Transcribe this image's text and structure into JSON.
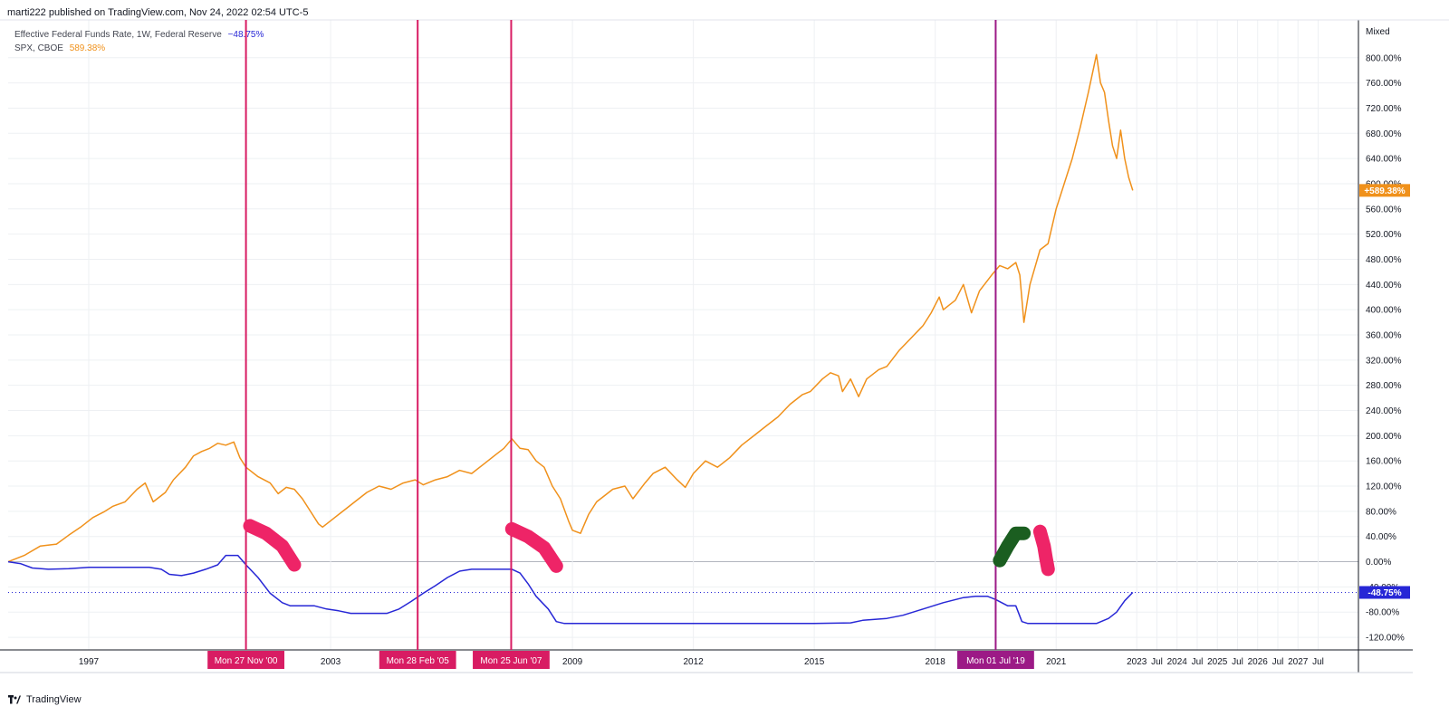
{
  "header": {
    "published_text": "marti222 published on TradingView.com, Nov 24, 2022 02:54 UTC-5"
  },
  "legend": {
    "fed": {
      "name": "Effective Federal Funds Rate, 1W, Federal Reserve",
      "value": "−48.75%",
      "color": "#2727d6"
    },
    "spx": {
      "name": "SPX, CBOE",
      "value": "589.38%",
      "color": "#f0911b"
    }
  },
  "scale_mode": "Mixed",
  "footer": {
    "brand": "TradingView"
  },
  "chart_data": {
    "type": "line",
    "y_unit": "percent change",
    "ylim": [
      -140,
      860
    ],
    "x_range_years": [
      1995.0,
      2028.5
    ],
    "x_tick_labels": [
      {
        "label": "1997",
        "t": 1997.0
      },
      {
        "label": "2003",
        "t": 2003.0
      },
      {
        "label": "2009",
        "t": 2009.0
      },
      {
        "label": "2012",
        "t": 2012.0
      },
      {
        "label": "2015",
        "t": 2015.0
      },
      {
        "label": "2018",
        "t": 2018.0
      },
      {
        "label": "2021",
        "t": 2021.0
      },
      {
        "label": "2023",
        "t": 2023.0
      },
      {
        "label": "Jul",
        "t": 2023.5
      },
      {
        "label": "2024",
        "t": 2024.0
      },
      {
        "label": "Jul",
        "t": 2024.5
      },
      {
        "label": "2025",
        "t": 2025.0
      },
      {
        "label": "Jul",
        "t": 2025.5
      },
      {
        "label": "2026",
        "t": 2026.0
      },
      {
        "label": "Jul",
        "t": 2026.5
      },
      {
        "label": "2027",
        "t": 2027.0
      },
      {
        "label": "Jul",
        "t": 2027.5
      }
    ],
    "y_tick_labels": [
      "800.00%",
      "760.00%",
      "720.00%",
      "680.00%",
      "640.00%",
      "600.00%",
      "560.00%",
      "520.00%",
      "480.00%",
      "440.00%",
      "400.00%",
      "360.00%",
      "320.00%",
      "280.00%",
      "240.00%",
      "200.00%",
      "160.00%",
      "120.00%",
      "80.00%",
      "40.00%",
      "0.00%",
      "-40.00%",
      "-80.00%",
      "-120.00%"
    ],
    "y_tick_values": [
      800,
      760,
      720,
      680,
      640,
      600,
      560,
      520,
      480,
      440,
      400,
      360,
      320,
      280,
      240,
      200,
      160,
      120,
      80,
      40,
      0,
      -40,
      -80,
      -120
    ],
    "series": [
      {
        "name": "SPX, CBOE",
        "color": "#f0911b",
        "last_value_label": "+589.38%",
        "points": [
          [
            1995.0,
            0
          ],
          [
            1995.4,
            10
          ],
          [
            1995.8,
            25
          ],
          [
            1996.2,
            28
          ],
          [
            1996.5,
            42
          ],
          [
            1996.8,
            55
          ],
          [
            1997.1,
            70
          ],
          [
            1997.4,
            80
          ],
          [
            1997.6,
            88
          ],
          [
            1997.9,
            95
          ],
          [
            1998.2,
            115
          ],
          [
            1998.4,
            125
          ],
          [
            1998.6,
            95
          ],
          [
            1998.9,
            110
          ],
          [
            1999.1,
            130
          ],
          [
            1999.4,
            150
          ],
          [
            1999.6,
            168
          ],
          [
            1999.8,
            175
          ],
          [
            2000.0,
            180
          ],
          [
            2000.2,
            188
          ],
          [
            2000.4,
            185
          ],
          [
            2000.6,
            190
          ],
          [
            2000.75,
            165
          ],
          [
            2000.9,
            150
          ],
          [
            2001.2,
            135
          ],
          [
            2001.5,
            125
          ],
          [
            2001.7,
            108
          ],
          [
            2001.9,
            118
          ],
          [
            2002.1,
            115
          ],
          [
            2002.3,
            100
          ],
          [
            2002.5,
            80
          ],
          [
            2002.7,
            60
          ],
          [
            2002.8,
            55
          ],
          [
            2003.0,
            65
          ],
          [
            2003.3,
            80
          ],
          [
            2003.6,
            95
          ],
          [
            2003.9,
            110
          ],
          [
            2004.2,
            120
          ],
          [
            2004.5,
            115
          ],
          [
            2004.8,
            125
          ],
          [
            2005.1,
            130
          ],
          [
            2005.3,
            122
          ],
          [
            2005.6,
            130
          ],
          [
            2005.9,
            135
          ],
          [
            2006.2,
            145
          ],
          [
            2006.5,
            140
          ],
          [
            2006.8,
            155
          ],
          [
            2007.1,
            170
          ],
          [
            2007.3,
            180
          ],
          [
            2007.5,
            195
          ],
          [
            2007.7,
            180
          ],
          [
            2007.9,
            178
          ],
          [
            2008.1,
            160
          ],
          [
            2008.3,
            150
          ],
          [
            2008.5,
            120
          ],
          [
            2008.7,
            100
          ],
          [
            2008.9,
            65
          ],
          [
            2009.0,
            50
          ],
          [
            2009.2,
            45
          ],
          [
            2009.4,
            75
          ],
          [
            2009.6,
            95
          ],
          [
            2009.8,
            105
          ],
          [
            2010.0,
            115
          ],
          [
            2010.3,
            120
          ],
          [
            2010.5,
            100
          ],
          [
            2010.8,
            125
          ],
          [
            2011.0,
            140
          ],
          [
            2011.3,
            150
          ],
          [
            2011.6,
            130
          ],
          [
            2011.8,
            118
          ],
          [
            2012.0,
            140
          ],
          [
            2012.3,
            160
          ],
          [
            2012.6,
            150
          ],
          [
            2012.9,
            165
          ],
          [
            2013.2,
            185
          ],
          [
            2013.5,
            200
          ],
          [
            2013.8,
            215
          ],
          [
            2014.1,
            230
          ],
          [
            2014.4,
            250
          ],
          [
            2014.7,
            265
          ],
          [
            2014.9,
            270
          ],
          [
            2015.2,
            290
          ],
          [
            2015.4,
            300
          ],
          [
            2015.6,
            295
          ],
          [
            2015.7,
            270
          ],
          [
            2015.9,
            290
          ],
          [
            2016.1,
            262
          ],
          [
            2016.3,
            290
          ],
          [
            2016.6,
            305
          ],
          [
            2016.8,
            310
          ],
          [
            2017.1,
            335
          ],
          [
            2017.4,
            355
          ],
          [
            2017.7,
            375
          ],
          [
            2017.9,
            395
          ],
          [
            2018.1,
            420
          ],
          [
            2018.2,
            400
          ],
          [
            2018.5,
            415
          ],
          [
            2018.7,
            440
          ],
          [
            2018.9,
            395
          ],
          [
            2019.1,
            430
          ],
          [
            2019.4,
            455
          ],
          [
            2019.6,
            470
          ],
          [
            2019.8,
            465
          ],
          [
            2020.0,
            475
          ],
          [
            2020.1,
            455
          ],
          [
            2020.2,
            380
          ],
          [
            2020.35,
            440
          ],
          [
            2020.6,
            495
          ],
          [
            2020.8,
            505
          ],
          [
            2021.0,
            560
          ],
          [
            2021.2,
            600
          ],
          [
            2021.4,
            640
          ],
          [
            2021.6,
            690
          ],
          [
            2021.8,
            745
          ],
          [
            2021.95,
            790
          ],
          [
            2022.0,
            805
          ],
          [
            2022.1,
            760
          ],
          [
            2022.2,
            745
          ],
          [
            2022.3,
            700
          ],
          [
            2022.4,
            660
          ],
          [
            2022.5,
            640
          ],
          [
            2022.6,
            685
          ],
          [
            2022.7,
            640
          ],
          [
            2022.8,
            610
          ],
          [
            2022.9,
            589.38
          ]
        ]
      },
      {
        "name": "Effective Federal Funds Rate, 1W, Federal Reserve",
        "color": "#2727d6",
        "last_value_label": "-48.75%",
        "points": [
          [
            1995.0,
            0
          ],
          [
            1995.3,
            -3
          ],
          [
            1995.6,
            -10
          ],
          [
            1996.0,
            -12
          ],
          [
            1996.5,
            -11
          ],
          [
            1997.0,
            -9
          ],
          [
            1997.5,
            -9
          ],
          [
            1998.0,
            -9
          ],
          [
            1998.5,
            -9
          ],
          [
            1998.8,
            -12
          ],
          [
            1999.0,
            -20
          ],
          [
            1999.3,
            -22
          ],
          [
            1999.6,
            -18
          ],
          [
            1999.9,
            -12
          ],
          [
            2000.2,
            -5
          ],
          [
            2000.4,
            10
          ],
          [
            2000.7,
            10
          ],
          [
            2000.9,
            -5
          ],
          [
            2001.2,
            -25
          ],
          [
            2001.5,
            -50
          ],
          [
            2001.8,
            -65
          ],
          [
            2002.0,
            -70
          ],
          [
            2002.3,
            -70
          ],
          [
            2002.6,
            -70
          ],
          [
            2002.9,
            -75
          ],
          [
            2003.2,
            -78
          ],
          [
            2003.5,
            -82
          ],
          [
            2004.0,
            -82
          ],
          [
            2004.4,
            -82
          ],
          [
            2004.7,
            -75
          ],
          [
            2005.0,
            -63
          ],
          [
            2005.3,
            -50
          ],
          [
            2005.6,
            -38
          ],
          [
            2005.9,
            -25
          ],
          [
            2006.2,
            -15
          ],
          [
            2006.5,
            -12
          ],
          [
            2007.0,
            -12
          ],
          [
            2007.5,
            -12
          ],
          [
            2007.7,
            -18
          ],
          [
            2007.9,
            -35
          ],
          [
            2008.1,
            -55
          ],
          [
            2008.4,
            -75
          ],
          [
            2008.6,
            -95
          ],
          [
            2008.8,
            -98
          ],
          [
            2009.5,
            -98
          ],
          [
            2010.0,
            -98
          ],
          [
            2011.0,
            -98
          ],
          [
            2012.0,
            -98
          ],
          [
            2013.0,
            -98
          ],
          [
            2014.0,
            -98
          ],
          [
            2015.0,
            -98
          ],
          [
            2015.9,
            -97
          ],
          [
            2016.2,
            -93
          ],
          [
            2016.8,
            -90
          ],
          [
            2017.2,
            -85
          ],
          [
            2017.7,
            -75
          ],
          [
            2018.2,
            -65
          ],
          [
            2018.7,
            -57
          ],
          [
            2019.0,
            -55
          ],
          [
            2019.3,
            -55
          ],
          [
            2019.5,
            -60
          ],
          [
            2019.8,
            -70
          ],
          [
            2020.0,
            -70
          ],
          [
            2020.15,
            -95
          ],
          [
            2020.3,
            -98
          ],
          [
            2021.0,
            -98
          ],
          [
            2022.0,
            -98
          ],
          [
            2022.3,
            -90
          ],
          [
            2022.5,
            -80
          ],
          [
            2022.7,
            -62
          ],
          [
            2022.9,
            -48.75
          ]
        ]
      }
    ],
    "vertical_markers": [
      {
        "t": 2000.9,
        "label": "Mon 27 Nov '00",
        "color": "#d81c63"
      },
      {
        "t": 2005.16,
        "label": "Mon 28 Feb '05",
        "color": "#d81c63"
      },
      {
        "t": 2007.48,
        "label": "Mon 25 Jun '07",
        "color": "#d81c63"
      },
      {
        "t": 2019.5,
        "label": "Mon 01 Jul '19",
        "color": "#9c1a86"
      }
    ],
    "drawings": [
      {
        "color": "#ee2467",
        "points": [
          [
            2001.0,
            57
          ],
          [
            2001.4,
            45
          ],
          [
            2001.8,
            25
          ],
          [
            2002.1,
            -5
          ]
        ]
      },
      {
        "color": "#ee2467",
        "points": [
          [
            2007.5,
            52
          ],
          [
            2007.9,
            40
          ],
          [
            2008.3,
            22
          ],
          [
            2008.6,
            -7
          ]
        ]
      },
      {
        "color": "#1b5e20",
        "points": [
          [
            2019.6,
            2
          ],
          [
            2019.8,
            25
          ],
          [
            2020.0,
            45
          ],
          [
            2020.2,
            45
          ]
        ]
      },
      {
        "color": "#ee2467",
        "points": [
          [
            2020.6,
            48
          ],
          [
            2020.7,
            25
          ],
          [
            2020.75,
            5
          ],
          [
            2020.8,
            -12
          ]
        ]
      }
    ]
  }
}
